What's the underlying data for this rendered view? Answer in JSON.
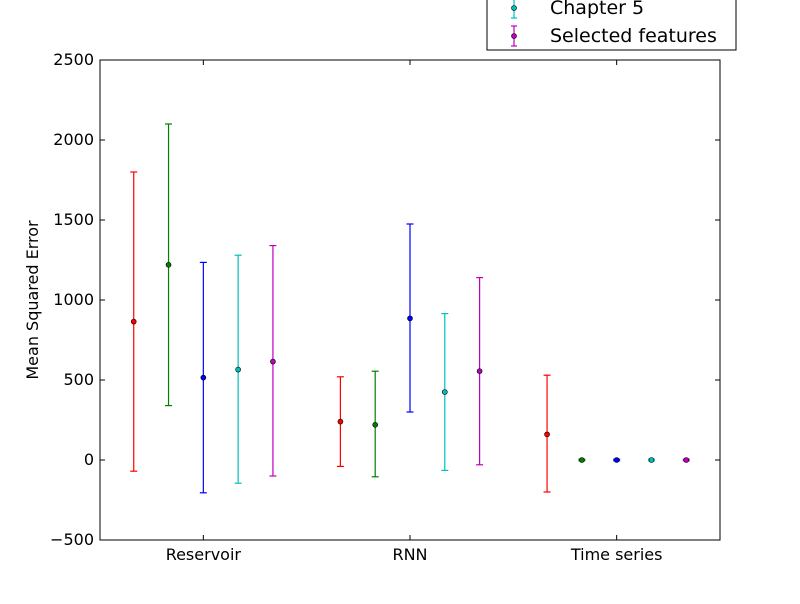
{
  "chart_data": {
    "type": "scatter",
    "subtype": "errorbar",
    "title": "",
    "xlabel": "",
    "ylabel": "Mean Squared Error",
    "ylim": [
      -500,
      2500
    ],
    "yticks": [
      -500,
      0,
      500,
      1000,
      1500,
      2000,
      2500
    ],
    "categories": [
      "Reservoir",
      "RNN",
      "Time series"
    ],
    "grid": false,
    "legend_position": "top-right (partially cut off above plot)",
    "series": [
      {
        "name": "",
        "color": "#ff0000",
        "points": [
          {
            "x": "Reservoir",
            "y": 865,
            "low": -70,
            "high": 1800
          },
          {
            "x": "RNN",
            "y": 240,
            "low": -40,
            "high": 520
          },
          {
            "x": "Time series",
            "y": 160,
            "low": -200,
            "high": 530
          }
        ]
      },
      {
        "name": "",
        "color": "#008000",
        "points": [
          {
            "x": "Reservoir",
            "y": 1220,
            "low": 340,
            "high": 2100
          },
          {
            "x": "RNN",
            "y": 220,
            "low": -105,
            "high": 555
          },
          {
            "x": "Time series",
            "y": 0,
            "low": -5,
            "high": 5
          }
        ]
      },
      {
        "name": "",
        "color": "#0000ff",
        "points": [
          {
            "x": "Reservoir",
            "y": 515,
            "low": -205,
            "high": 1235
          },
          {
            "x": "RNN",
            "y": 885,
            "low": 300,
            "high": 1475
          },
          {
            "x": "Time series",
            "y": 0,
            "low": -5,
            "high": 5
          }
        ]
      },
      {
        "name": "Chapter 5",
        "color": "#00bfbf",
        "points": [
          {
            "x": "Reservoir",
            "y": 565,
            "low": -145,
            "high": 1280
          },
          {
            "x": "RNN",
            "y": 425,
            "low": -65,
            "high": 915
          },
          {
            "x": "Time series",
            "y": 0,
            "low": -5,
            "high": 5
          }
        ]
      },
      {
        "name": "Selected features",
        "color": "#bf00bf",
        "points": [
          {
            "x": "Reservoir",
            "y": 615,
            "low": -100,
            "high": 1340
          },
          {
            "x": "RNN",
            "y": 555,
            "low": -30,
            "high": 1140
          },
          {
            "x": "Time series",
            "y": 0,
            "low": -5,
            "high": 5
          }
        ]
      }
    ]
  }
}
